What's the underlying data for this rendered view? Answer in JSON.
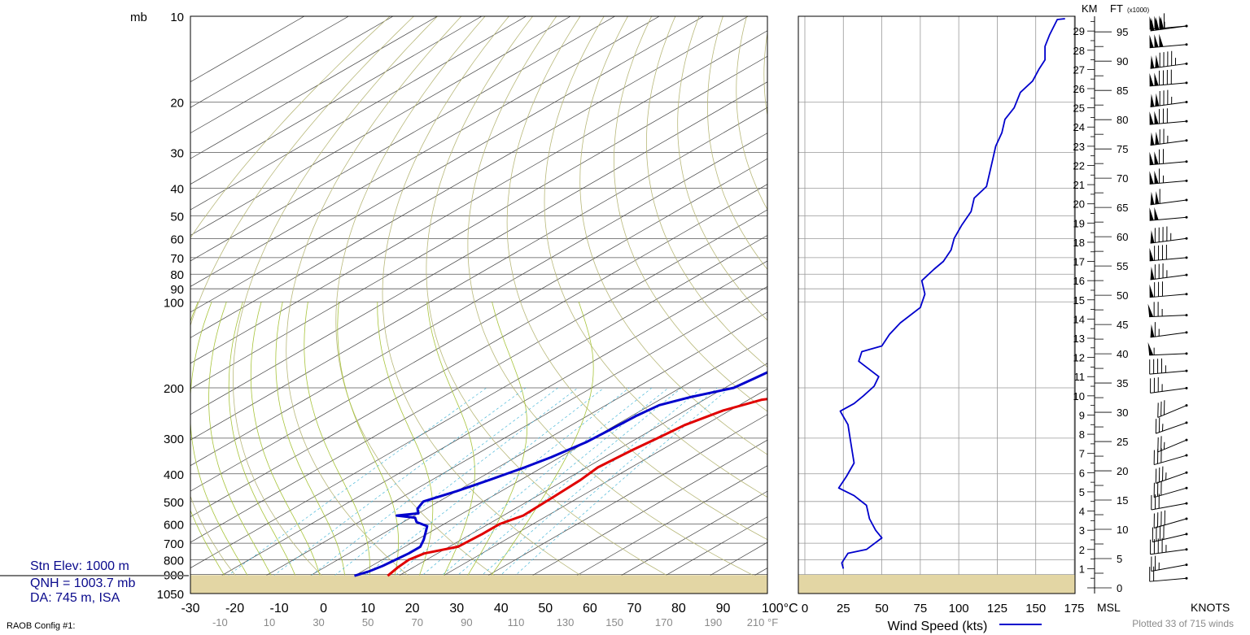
{
  "chart_data": [
    {
      "type": "skew-t",
      "pressure_unit_label": "mb",
      "pressure_ticks": [
        10,
        20,
        30,
        40,
        50,
        60,
        70,
        80,
        90,
        100,
        200,
        300,
        400,
        500,
        600,
        700,
        800,
        900,
        1050
      ],
      "temperature_ticks_c": [
        "-30",
        "-20",
        "-10",
        "0",
        "10",
        "20",
        "30",
        "40",
        "50",
        "60",
        "70",
        "80",
        "90",
        "100°C"
      ],
      "temperature_ticks_f": [
        "-10",
        "10",
        "30",
        "50",
        "70",
        "90",
        "110",
        "130",
        "150",
        "170",
        "190",
        "210 °F"
      ],
      "xlim_c": [
        -30,
        100
      ],
      "ylim_mb": [
        1050,
        10
      ],
      "log_pressure_axis": true,
      "ground_pressure_mb": 905,
      "series": [
        {
          "color": "#e00000",
          "points": [
            [
              910,
              7.5
            ],
            [
              850,
              6.5
            ],
            [
              800,
              6.0
            ],
            [
              760,
              7.0
            ],
            [
              720,
              12.0
            ],
            [
              650,
              12.5
            ],
            [
              600,
              12.5
            ],
            [
              560,
              14.5
            ],
            [
              480,
              14.0
            ],
            [
              420,
              13.5
            ],
            [
              380,
              12.5
            ],
            [
              330,
              13.5
            ],
            [
              300,
              14.5
            ],
            [
              270,
              15.5
            ],
            [
              240,
              18.5
            ],
            [
              220,
              23.0
            ],
            [
              210,
              31.0
            ],
            [
              195,
              33.0
            ],
            [
              180,
              40.0
            ],
            [
              170,
              44.0
            ],
            [
              160,
              49.0
            ],
            [
              150,
              52.0
            ],
            [
              130,
              58.0
            ],
            [
              120,
              59.0
            ],
            [
              110,
              63.0
            ],
            [
              100,
              67.0
            ],
            [
              90,
              70.0
            ],
            [
              80,
              76.0
            ],
            [
              70,
              83.0
            ],
            [
              65,
              88.0
            ],
            [
              62,
              95.0
            ],
            [
              61,
              100.0
            ]
          ]
        },
        {
          "color": "#0000cc",
          "points": [
            [
              910,
              0.0
            ],
            [
              880,
              1.5
            ],
            [
              840,
              2.5
            ],
            [
              800,
              3.0
            ],
            [
              760,
              3.5
            ],
            [
              720,
              3.5
            ],
            [
              680,
              1.5
            ],
            [
              640,
              -1.0
            ],
            [
              610,
              -3.0
            ],
            [
              590,
              -7.0
            ],
            [
              570,
              -9.0
            ],
            [
              560,
              -14.0
            ],
            [
              550,
              -10.0
            ],
            [
              530,
              -12.0
            ],
            [
              500,
              -13.5
            ],
            [
              460,
              -10.0
            ],
            [
              420,
              -7.0
            ],
            [
              380,
              -4.0
            ],
            [
              350,
              -2.0
            ],
            [
              310,
              0.0
            ],
            [
              280,
              0.5
            ],
            [
              250,
              1.0
            ],
            [
              230,
              2.0
            ],
            [
              215,
              6.0
            ],
            [
              200,
              12.0
            ],
            [
              185,
              13.0
            ],
            [
              170,
              14.0
            ],
            [
              155,
              15.0
            ],
            [
              140,
              17.0
            ],
            [
              125,
              19.0
            ],
            [
              110,
              23.0
            ],
            [
              100,
              25.0
            ],
            [
              90,
              30.0
            ],
            [
              80,
              33.0
            ],
            [
              77,
              31.0
            ],
            [
              72,
              39.0
            ],
            [
              65,
              47.0
            ],
            [
              60,
              50.0
            ],
            [
              55,
              56.0
            ],
            [
              50,
              62.0
            ],
            [
              45,
              70.0
            ],
            [
              40,
              76.0
            ],
            [
              37,
              82.0
            ],
            [
              33,
              96.0
            ]
          ]
        }
      ]
    },
    {
      "type": "line",
      "xlabel": "Wind Speed (kts)",
      "xticks": [
        "0",
        "25",
        "50",
        "75",
        "100",
        "125",
        "150",
        "175"
      ],
      "xlim": [
        0,
        175
      ],
      "y_unit_label": "km",
      "ylim": [
        0,
        30
      ],
      "ground_km": 1.0,
      "series": [
        {
          "color": "#0000cc",
          "points": [
            [
              25,
              1.0
            ],
            [
              24,
              1.3
            ],
            [
              28,
              1.8
            ],
            [
              40,
              2.0
            ],
            [
              50,
              2.6
            ],
            [
              46,
              3.0
            ],
            [
              42,
              3.6
            ],
            [
              40,
              4.3
            ],
            [
              32,
              4.8
            ],
            [
              22,
              5.2
            ],
            [
              27,
              5.8
            ],
            [
              32,
              6.5
            ],
            [
              30,
              7.5
            ],
            [
              28,
              8.5
            ],
            [
              23,
              9.2
            ],
            [
              32,
              9.6
            ],
            [
              38,
              10.0
            ],
            [
              45,
              10.5
            ],
            [
              48,
              11.0
            ],
            [
              35,
              11.8
            ],
            [
              37,
              12.3
            ],
            [
              50,
              12.6
            ],
            [
              55,
              13.2
            ],
            [
              62,
              13.8
            ],
            [
              75,
              14.6
            ],
            [
              78,
              15.3
            ],
            [
              76,
              16.0
            ],
            [
              84,
              16.6
            ],
            [
              90,
              17.0
            ],
            [
              95,
              17.6
            ],
            [
              97,
              18.2
            ],
            [
              102,
              18.9
            ],
            [
              108,
              19.6
            ],
            [
              110,
              20.3
            ],
            [
              118,
              20.9
            ],
            [
              120,
              21.6
            ],
            [
              122,
              22.3
            ],
            [
              124,
              23.0
            ],
            [
              128,
              23.7
            ],
            [
              130,
              24.4
            ],
            [
              136,
              25.0
            ],
            [
              140,
              25.8
            ],
            [
              148,
              26.4
            ],
            [
              152,
              27.0
            ],
            [
              156,
              27.5
            ],
            [
              156,
              28.2
            ],
            [
              159,
              28.8
            ],
            [
              164,
              29.6
            ],
            [
              169,
              30.0
            ]
          ]
        }
      ]
    },
    {
      "type": "wind-barbs",
      "left_unit": "KM",
      "right_unit": "FT",
      "right_unit_note": "(x1000)",
      "km_ticks": [
        1,
        2,
        3,
        4,
        5,
        6,
        7,
        8,
        9,
        10,
        11,
        12,
        13,
        14,
        15,
        16,
        17,
        18,
        19,
        20,
        21,
        22,
        23,
        24,
        25,
        26,
        27,
        28,
        29
      ],
      "ft_ticks": [
        0,
        5,
        10,
        15,
        20,
        25,
        30,
        35,
        40,
        45,
        50,
        55,
        60,
        65,
        70,
        75,
        80,
        85,
        90,
        95
      ],
      "bottom_label": "MSL",
      "speed_label": "KNOTS",
      "barbs": [
        {
          "km": 0.5,
          "speed": 20,
          "dir": 280
        },
        {
          "km": 1.2,
          "speed": 25,
          "dir": 290
        },
        {
          "km": 2.0,
          "speed": 45,
          "dir": 285
        },
        {
          "km": 2.8,
          "speed": 40,
          "dir": 295
        },
        {
          "km": 3.6,
          "speed": 40,
          "dir": 300
        },
        {
          "km": 4.4,
          "speed": 30,
          "dir": 290
        },
        {
          "km": 5.2,
          "speed": 30,
          "dir": 300
        },
        {
          "km": 6.0,
          "speed": 35,
          "dir": 305
        },
        {
          "km": 6.9,
          "speed": 30,
          "dir": 300
        },
        {
          "km": 7.7,
          "speed": 25,
          "dir": 310
        },
        {
          "km": 8.6,
          "speed": 25,
          "dir": 305
        },
        {
          "km": 9.5,
          "speed": 30,
          "dir": 310
        },
        {
          "km": 10.4,
          "speed": 35,
          "dir": 285
        },
        {
          "km": 11.3,
          "speed": 45,
          "dir": 280
        },
        {
          "km": 12.2,
          "speed": 55,
          "dir": 275
        },
        {
          "km": 13.3,
          "speed": 65,
          "dir": 285
        },
        {
          "km": 14.2,
          "speed": 75,
          "dir": 275
        },
        {
          "km": 15.3,
          "speed": 80,
          "dir": 280
        },
        {
          "km": 16.3,
          "speed": 85,
          "dir": 285
        },
        {
          "km": 17.2,
          "speed": 90,
          "dir": 280
        },
        {
          "km": 18.2,
          "speed": 95,
          "dir": 285
        },
        {
          "km": 19.3,
          "speed": 100,
          "dir": 280
        },
        {
          "km": 20.2,
          "speed": 110,
          "dir": 285
        },
        {
          "km": 21.2,
          "speed": 115,
          "dir": 280
        },
        {
          "km": 22.2,
          "speed": 120,
          "dir": 280
        },
        {
          "km": 23.3,
          "speed": 125,
          "dir": 285
        },
        {
          "km": 24.3,
          "speed": 130,
          "dir": 280
        },
        {
          "km": 25.3,
          "speed": 135,
          "dir": 285
        },
        {
          "km": 26.3,
          "speed": 140,
          "dir": 280
        },
        {
          "km": 27.3,
          "speed": 145,
          "dir": 285
        },
        {
          "km": 28.3,
          "speed": 150,
          "dir": 280
        },
        {
          "km": 29.3,
          "speed": 155,
          "dir": 285
        },
        {
          "km": 30.2,
          "speed": 160,
          "dir": 280
        }
      ]
    }
  ],
  "station": {
    "elev": "Stn Elev: 1000 m",
    "qnh": "QNH = 1003.7 mb",
    "da": "DA: 745 m, ISA"
  },
  "footer": {
    "config": "RAOB Config #1:",
    "plotted": "Plotted 33 of 715 winds"
  }
}
